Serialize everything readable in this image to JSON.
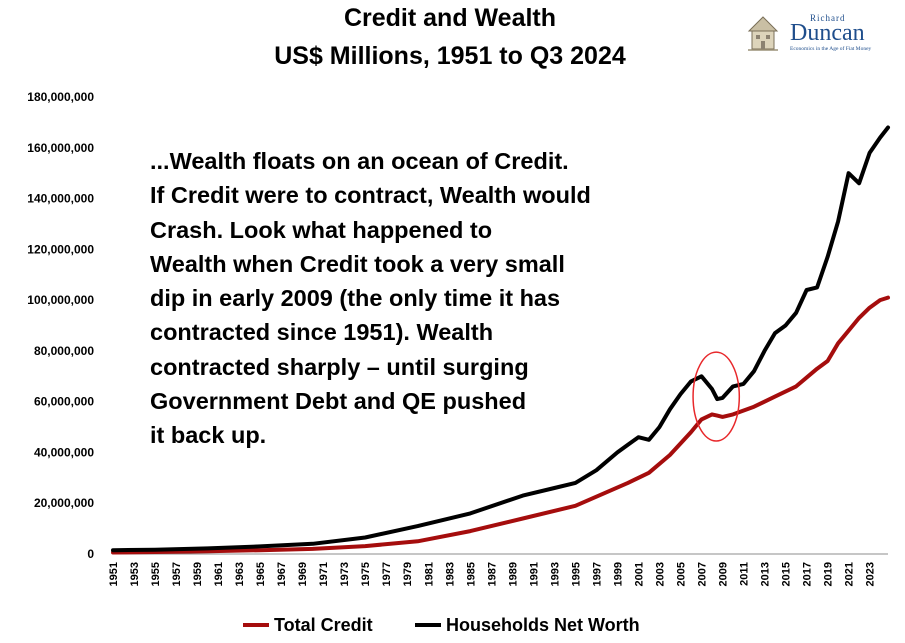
{
  "title_line1": "Credit and Wealth",
  "title_line2": "US$ Millions, 1951 to Q3 2024",
  "annotation_lines": [
    "...Wealth floats on an ocean of Credit.",
    "If Credit were to contract, Wealth would",
    "Crash.  Look what happened to",
    "Wealth when Credit took a very small",
    "dip in early 2009 (the only time it has",
    "contracted since 1951).  Wealth",
    "contracted sharply – until surging",
    "Government Debt and QE pushed",
    "it back up."
  ],
  "logo": {
    "top": "Richard",
    "name": "Duncan",
    "tagline": "Economics in the Age of Fiat Money",
    "color": "#1f4e8c"
  },
  "colors": {
    "total_credit": "#a50d0d",
    "net_worth": "#000000",
    "highlight": "#e8282b"
  },
  "chart_data": {
    "type": "line",
    "title": "Credit and Wealth",
    "subtitle": "US$ Millions, 1951 to Q3 2024",
    "ylim": [
      0,
      180000000
    ],
    "yticks": [
      0,
      20000000,
      40000000,
      60000000,
      80000000,
      100000000,
      120000000,
      140000000,
      160000000,
      180000000
    ],
    "ytick_labels": [
      "0",
      "20,000,000",
      "40,000,000",
      "60,000,000",
      "80,000,000",
      "100,000,000",
      "120,000,000",
      "140,000,000",
      "160,000,000",
      "180,000,000"
    ],
    "xlim": [
      1951,
      2024.75
    ],
    "xticks": [
      1951,
      1953,
      1955,
      1957,
      1959,
      1961,
      1963,
      1965,
      1967,
      1969,
      1971,
      1973,
      1975,
      1977,
      1979,
      1981,
      1983,
      1985,
      1987,
      1989,
      1991,
      1993,
      1995,
      1997,
      1999,
      2001,
      2003,
      2005,
      2007,
      2009,
      2011,
      2013,
      2015,
      2017,
      2019,
      2021,
      2023
    ],
    "grid": false,
    "legend_position": "bottom",
    "highlight_ellipse": {
      "center_year": 2008.4,
      "center_value": 62000000,
      "half_width_years": 2.2,
      "half_height_value": 17500000
    },
    "series": [
      {
        "name": "Total Credit",
        "x": [
          1951,
          1955,
          1960,
          1965,
          1970,
          1975,
          1980,
          1985,
          1990,
          1995,
          2000,
          2002,
          2004,
          2006,
          2007,
          2008,
          2008.5,
          2009,
          2010,
          2012,
          2014,
          2016,
          2018,
          2019,
          2020,
          2021,
          2022,
          2023,
          2024,
          2024.75
        ],
        "values": [
          600000,
          800000,
          1100000,
          1500000,
          2000000,
          3100000,
          5000000,
          9000000,
          14000000,
          19000000,
          28000000,
          32000000,
          39000000,
          48000000,
          53000000,
          55000000,
          54500000,
          54000000,
          55000000,
          58000000,
          62000000,
          66000000,
          73000000,
          76000000,
          83000000,
          88000000,
          93000000,
          97000000,
          100000000,
          101000000
        ]
      },
      {
        "name": "Households Net Worth",
        "x": [
          1951,
          1955,
          1960,
          1965,
          1970,
          1975,
          1980,
          1985,
          1990,
          1993,
          1995,
          1997,
          1999,
          2000,
          2001,
          2002,
          2003,
          2004,
          2005,
          2006,
          2007,
          2008,
          2008.5,
          2009,
          2010,
          2011,
          2012,
          2013,
          2014,
          2015,
          2016,
          2017,
          2018,
          2019,
          2020,
          2021,
          2022,
          2023,
          2024,
          2024.75
        ],
        "values": [
          1500000,
          1700000,
          2200000,
          3000000,
          4000000,
          6500000,
          11000000,
          16000000,
          23000000,
          26000000,
          28000000,
          33000000,
          40000000,
          43000000,
          46000000,
          45000000,
          50000000,
          57000000,
          63000000,
          68000000,
          70000000,
          65000000,
          61000000,
          61500000,
          66000000,
          67000000,
          72000000,
          80000000,
          87000000,
          90000000,
          95000000,
          104000000,
          105000000,
          117000000,
          131000000,
          150000000,
          146000000,
          158000000,
          164000000,
          168000000
        ]
      }
    ]
  }
}
